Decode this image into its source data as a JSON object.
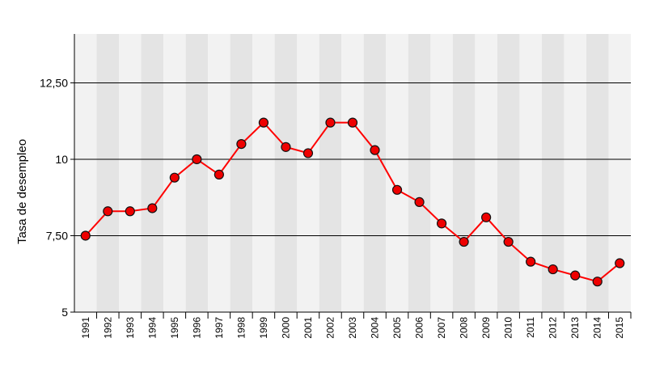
{
  "chart_data": {
    "type": "line",
    "title": "",
    "xlabel": "",
    "ylabel": "Tasa de desempleo",
    "categories": [
      "1991",
      "1992",
      "1993",
      "1994",
      "1995",
      "1996",
      "1997",
      "1998",
      "1999",
      "2000",
      "2001",
      "2002",
      "2003",
      "2004",
      "2005",
      "2006",
      "2007",
      "2008",
      "2009",
      "2010",
      "2011",
      "2012",
      "2013",
      "2014",
      "2015"
    ],
    "series": [
      {
        "values": [
          7.5,
          8.3,
          8.3,
          8.4,
          9.4,
          10.0,
          9.5,
          10.5,
          11.2,
          10.4,
          10.2,
          11.2,
          11.2,
          10.3,
          9.0,
          8.6,
          7.9,
          7.3,
          8.1,
          7.3,
          6.65,
          6.4,
          6.2,
          6.0,
          6.6
        ]
      }
    ],
    "ylim": [
      5,
      14.1
    ],
    "yticks": [
      5,
      7.5,
      10,
      12.5
    ],
    "ytick_labels": [
      "5",
      "7,50",
      "10",
      "12,50"
    ],
    "grid": true,
    "colors": {
      "line": "#ff0000",
      "marker_fill": "#ee0000",
      "marker_stroke": "#111111",
      "band_dark": "#e4e4e4",
      "band_light": "#f2f2f2"
    }
  }
}
